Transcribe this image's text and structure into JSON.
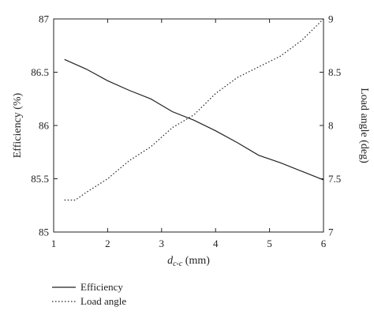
{
  "chart_data": {
    "type": "line",
    "xlabel": "d",
    "xlabel_sub": "c-c",
    "xlabel_unit": " (mm)",
    "ylabel_left": "Efficiency (%)",
    "ylabel_right": "Load angle (deg)",
    "xlim": [
      1,
      6
    ],
    "ylim_left": [
      85,
      87
    ],
    "ylim_right": [
      7,
      9
    ],
    "x_ticks": [
      1,
      2,
      3,
      4,
      5,
      6
    ],
    "y_left_ticks": [
      "85",
      "85.5",
      "86",
      "86.5",
      "87"
    ],
    "y_right_ticks": [
      "7",
      "7.5",
      "8",
      "8.5",
      "9"
    ],
    "legend_position": "bottom-left, below plot",
    "series": [
      {
        "name": "Efficiency",
        "axis": "left",
        "style": "solid",
        "x": [
          1.2,
          1.6,
          2.0,
          2.4,
          2.8,
          3.2,
          3.6,
          4.0,
          4.4,
          4.8,
          5.2,
          5.6,
          6.0
        ],
        "y": [
          86.62,
          86.53,
          86.42,
          86.33,
          86.25,
          86.13,
          86.05,
          85.95,
          85.84,
          85.72,
          85.65,
          85.57,
          85.49
        ]
      },
      {
        "name": "Load angle",
        "axis": "right",
        "style": "dotted",
        "x": [
          1.2,
          1.4,
          1.6,
          2.0,
          2.4,
          2.8,
          3.2,
          3.6,
          4.0,
          4.4,
          4.8,
          5.2,
          5.6,
          6.0
        ],
        "y": [
          7.3,
          7.3,
          7.37,
          7.5,
          7.67,
          7.8,
          7.98,
          8.1,
          8.3,
          8.45,
          8.55,
          8.65,
          8.8,
          9.0
        ]
      }
    ]
  }
}
